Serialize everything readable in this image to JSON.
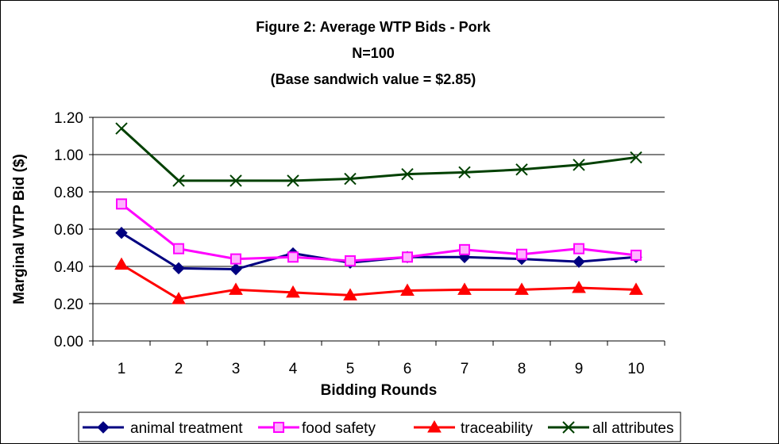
{
  "chart_data": {
    "type": "line",
    "title_lines": [
      "Figure 2: Average WTP Bids - Pork",
      "N=100",
      "(Base sandwich value = $2.85)"
    ],
    "xlabel": "Bidding Rounds",
    "ylabel": "Marginal WTP Bid ($)",
    "categories": [
      "1",
      "2",
      "3",
      "4",
      "5",
      "6",
      "7",
      "8",
      "9",
      "10"
    ],
    "ylim": [
      0,
      1.2
    ],
    "yticks": [
      "0.00",
      "0.20",
      "0.40",
      "0.60",
      "0.80",
      "1.00",
      "1.20"
    ],
    "grid": "horizontal",
    "legend_position": "bottom",
    "series": [
      {
        "name": "animal treatment",
        "color": "#000080",
        "marker": "diamond",
        "values": [
          0.58,
          0.39,
          0.385,
          0.47,
          0.42,
          0.45,
          0.45,
          0.44,
          0.425,
          0.45
        ]
      },
      {
        "name": "food safety",
        "color": "#FF00FF",
        "marker": "square",
        "values": [
          0.735,
          0.495,
          0.44,
          0.45,
          0.43,
          0.45,
          0.49,
          0.465,
          0.495,
          0.46
        ]
      },
      {
        "name": "traceability",
        "color": "#FF0000",
        "marker": "triangle",
        "values": [
          0.41,
          0.225,
          0.275,
          0.26,
          0.245,
          0.27,
          0.275,
          0.275,
          0.285,
          0.275
        ]
      },
      {
        "name": "all attributes",
        "color": "#004000",
        "marker": "x",
        "values": [
          1.14,
          0.86,
          0.86,
          0.86,
          0.87,
          0.895,
          0.905,
          0.92,
          0.945,
          0.985
        ]
      }
    ]
  }
}
